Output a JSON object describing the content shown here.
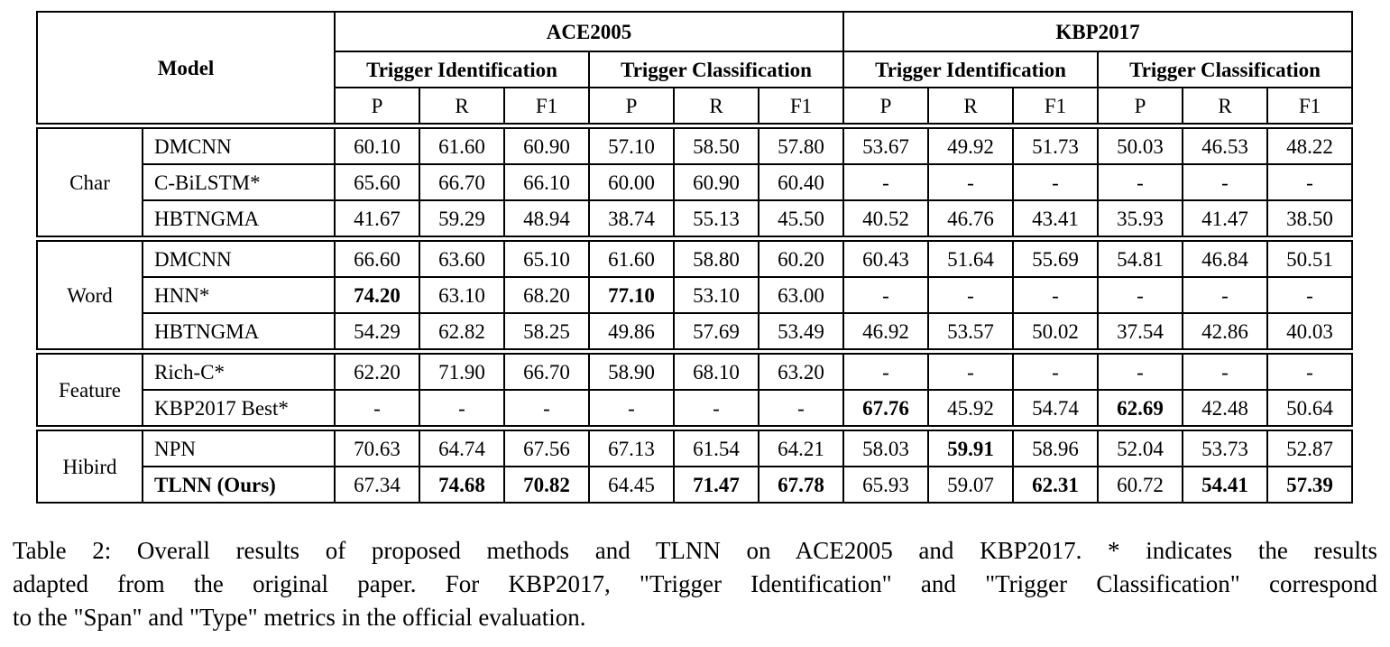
{
  "table": {
    "header": {
      "model_label": "Model",
      "metrics": [
        "P",
        "R",
        "F1"
      ],
      "datasets": [
        {
          "label": "ACE2005",
          "sections": [
            "Trigger Identification",
            "Trigger Classification"
          ]
        },
        {
          "label": "KBP2017",
          "sections": [
            "Trigger Identification",
            "Trigger Classification"
          ]
        }
      ]
    },
    "groups": [
      {
        "name": "Char",
        "rows": [
          {
            "model": "DMCNN",
            "model_bold": false,
            "cells": [
              {
                "t": "60.10"
              },
              {
                "t": "61.60"
              },
              {
                "t": "60.90"
              },
              {
                "t": "57.10"
              },
              {
                "t": "58.50"
              },
              {
                "t": "57.80"
              },
              {
                "t": "53.67"
              },
              {
                "t": "49.92"
              },
              {
                "t": "51.73"
              },
              {
                "t": "50.03"
              },
              {
                "t": "46.53"
              },
              {
                "t": "48.22"
              }
            ]
          },
          {
            "model": "C-BiLSTM*",
            "model_bold": false,
            "cells": [
              {
                "t": "65.60"
              },
              {
                "t": "66.70"
              },
              {
                "t": "66.10"
              },
              {
                "t": "60.00"
              },
              {
                "t": "60.90"
              },
              {
                "t": "60.40"
              },
              {
                "t": "-"
              },
              {
                "t": "-"
              },
              {
                "t": "-"
              },
              {
                "t": "-"
              },
              {
                "t": "-"
              },
              {
                "t": "-"
              }
            ]
          },
          {
            "model": "HBTNGMA",
            "model_bold": false,
            "cells": [
              {
                "t": "41.67"
              },
              {
                "t": "59.29"
              },
              {
                "t": "48.94"
              },
              {
                "t": "38.74"
              },
              {
                "t": "55.13"
              },
              {
                "t": "45.50"
              },
              {
                "t": "40.52"
              },
              {
                "t": "46.76"
              },
              {
                "t": "43.41"
              },
              {
                "t": "35.93"
              },
              {
                "t": "41.47"
              },
              {
                "t": "38.50"
              }
            ]
          }
        ]
      },
      {
        "name": "Word",
        "rows": [
          {
            "model": "DMCNN",
            "model_bold": false,
            "cells": [
              {
                "t": "66.60"
              },
              {
                "t": "63.60"
              },
              {
                "t": "65.10"
              },
              {
                "t": "61.60"
              },
              {
                "t": "58.80"
              },
              {
                "t": "60.20"
              },
              {
                "t": "60.43"
              },
              {
                "t": "51.64"
              },
              {
                "t": "55.69"
              },
              {
                "t": "54.81"
              },
              {
                "t": "46.84"
              },
              {
                "t": "50.51"
              }
            ]
          },
          {
            "model": "HNN*",
            "model_bold": false,
            "cells": [
              {
                "t": "74.20",
                "b": true
              },
              {
                "t": "63.10"
              },
              {
                "t": "68.20"
              },
              {
                "t": "77.10",
                "b": true
              },
              {
                "t": "53.10"
              },
              {
                "t": "63.00"
              },
              {
                "t": "-"
              },
              {
                "t": "-"
              },
              {
                "t": "-"
              },
              {
                "t": "-"
              },
              {
                "t": "-"
              },
              {
                "t": "-"
              }
            ]
          },
          {
            "model": "HBTNGMA",
            "model_bold": false,
            "cells": [
              {
                "t": "54.29"
              },
              {
                "t": "62.82"
              },
              {
                "t": "58.25"
              },
              {
                "t": "49.86"
              },
              {
                "t": "57.69"
              },
              {
                "t": "53.49"
              },
              {
                "t": "46.92"
              },
              {
                "t": "53.57"
              },
              {
                "t": "50.02"
              },
              {
                "t": "37.54"
              },
              {
                "t": "42.86"
              },
              {
                "t": "40.03"
              }
            ]
          }
        ]
      },
      {
        "name": "Feature",
        "rows": [
          {
            "model": "Rich-C*",
            "model_bold": false,
            "cells": [
              {
                "t": "62.20"
              },
              {
                "t": "71.90"
              },
              {
                "t": "66.70"
              },
              {
                "t": "58.90"
              },
              {
                "t": "68.10"
              },
              {
                "t": "63.20"
              },
              {
                "t": "-"
              },
              {
                "t": "-"
              },
              {
                "t": "-"
              },
              {
                "t": "-"
              },
              {
                "t": "-"
              },
              {
                "t": "-"
              }
            ]
          },
          {
            "model": "KBP2017 Best*",
            "model_bold": false,
            "cells": [
              {
                "t": "-"
              },
              {
                "t": "-"
              },
              {
                "t": "-"
              },
              {
                "t": "-"
              },
              {
                "t": "-"
              },
              {
                "t": "-"
              },
              {
                "t": "67.76",
                "b": true
              },
              {
                "t": "45.92"
              },
              {
                "t": "54.74"
              },
              {
                "t": "62.69",
                "b": true
              },
              {
                "t": "42.48"
              },
              {
                "t": "50.64"
              }
            ]
          }
        ]
      },
      {
        "name": "Hibird",
        "rows": [
          {
            "model": "NPN",
            "model_bold": false,
            "cells": [
              {
                "t": "70.63"
              },
              {
                "t": "64.74"
              },
              {
                "t": "67.56"
              },
              {
                "t": "67.13"
              },
              {
                "t": "61.54"
              },
              {
                "t": "64.21"
              },
              {
                "t": "58.03"
              },
              {
                "t": "59.91",
                "b": true
              },
              {
                "t": "58.96"
              },
              {
                "t": "52.04"
              },
              {
                "t": "53.73"
              },
              {
                "t": "52.87"
              }
            ]
          },
          {
            "model": "TLNN (Ours)",
            "model_bold": true,
            "cells": [
              {
                "t": "67.34"
              },
              {
                "t": "74.68",
                "b": true
              },
              {
                "t": "70.82",
                "b": true
              },
              {
                "t": "64.45"
              },
              {
                "t": "71.47",
                "b": true
              },
              {
                "t": "67.78",
                "b": true
              },
              {
                "t": "65.93"
              },
              {
                "t": "59.07"
              },
              {
                "t": "62.31",
                "b": true
              },
              {
                "t": "60.72"
              },
              {
                "t": "54.41",
                "b": true
              },
              {
                "t": "57.39",
                "b": true
              }
            ]
          }
        ]
      }
    ]
  },
  "caption": {
    "lines": [
      "Table 2: Overall results of proposed methods and TLNN on ACE2005 and KBP2017. * indicates the results",
      "adapted from the original paper. For KBP2017, \"Trigger Identification\" and \"Trigger Classification\" correspond",
      "to the \"Span\" and \"Type\" metrics in the official evaluation."
    ]
  }
}
